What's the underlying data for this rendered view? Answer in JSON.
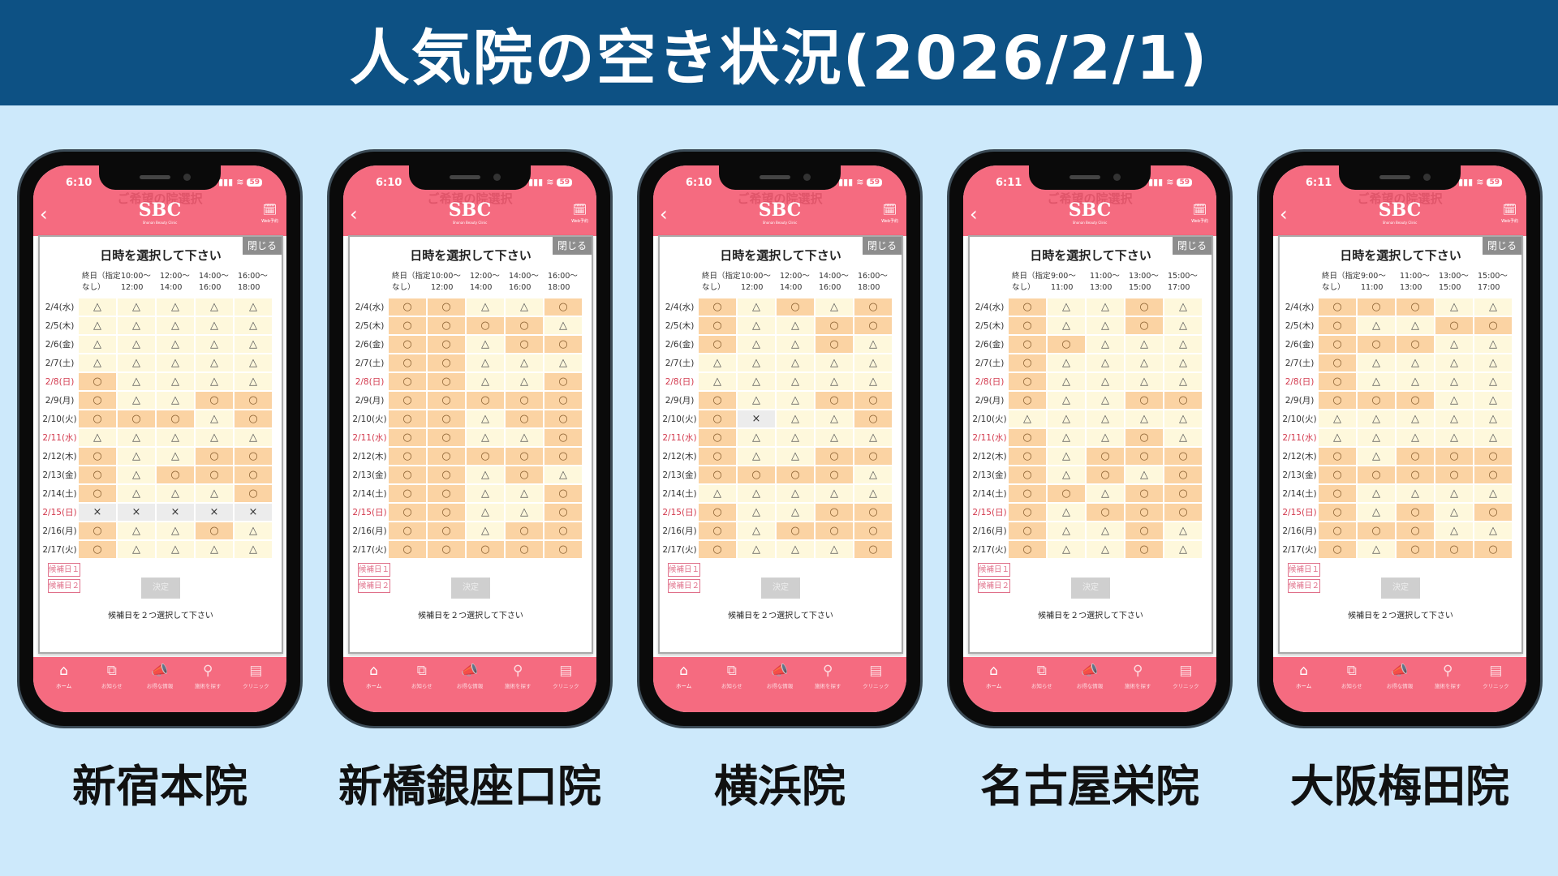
{
  "title": "人気院の空き状況(2026/2/1)",
  "app": {
    "header_faded": "ご希望の院選択",
    "logo": "SBC",
    "logo_sub": "Shonan Beauty Clinic",
    "back_icon": "chevron-left-icon",
    "web_reserve": "Web予約",
    "modal_title": "日時を選択して下さい",
    "close": "閉じる",
    "candidate1": "候補日１",
    "candidate2": "候補日２",
    "decide": "決定",
    "message": "候補日を２つ選択して下さい",
    "nav": [
      "ホーム",
      "お知らせ",
      "お得な情報",
      "施術を探す",
      "クリニック"
    ]
  },
  "colors": {
    "banner": "#0d5184",
    "background": "#cde9fb",
    "app_pink": "#f56b80",
    "available": "#fbd3a3",
    "few_left": "#fef8dc",
    "full": "#ececec",
    "holiday": "#d2394d"
  },
  "legend_symbols": {
    "available": "○",
    "few_left": "△",
    "full": "×"
  },
  "dates": [
    {
      "label": "2/4(水)",
      "holiday": false
    },
    {
      "label": "2/5(木)",
      "holiday": false
    },
    {
      "label": "2/6(金)",
      "holiday": false
    },
    {
      "label": "2/7(土)",
      "holiday": false
    },
    {
      "label": "2/8(日)",
      "holiday": true
    },
    {
      "label": "2/9(月)",
      "holiday": false
    },
    {
      "label": "2/10(火)",
      "holiday": false
    },
    {
      "label": "2/11(水)",
      "holiday": true
    },
    {
      "label": "2/12(木)",
      "holiday": false
    },
    {
      "label": "2/13(金)",
      "holiday": false
    },
    {
      "label": "2/14(土)",
      "holiday": false
    },
    {
      "label": "2/15(日)",
      "holiday": true
    },
    {
      "label": "2/16(月)",
      "holiday": false
    },
    {
      "label": "2/17(火)",
      "holiday": false
    }
  ],
  "clinics": [
    {
      "name": "新宿本院",
      "screen_label": "新宿本院",
      "time": "6:10",
      "battery": "59",
      "columns": [
        "終日（指定\nなし）",
        "10:00〜\n12:00",
        "12:00〜\n14:00",
        "14:00〜\n16:00",
        "16:00〜\n18:00"
      ],
      "rows": [
        "△△△△△",
        "△△△△△",
        "△△△△△",
        "△△△△△",
        "○△△△△",
        "○△△○○",
        "○○○△○",
        "△△△△△",
        "○△△○○",
        "○△○○○",
        "○△△△○",
        "×××××",
        "○△△○△",
        "○△△△△"
      ]
    },
    {
      "name": "新橋銀座口院",
      "screen_label": "新橋銀座口院",
      "time": "6:10",
      "battery": "59",
      "columns": [
        "終日（指定\nなし）",
        "10:00〜\n12:00",
        "12:00〜\n14:00",
        "14:00〜\n16:00",
        "16:00〜\n18:00"
      ],
      "rows": [
        "○○△△○",
        "○○○○△",
        "○○△○○",
        "○○△△△",
        "○○△△○",
        "○○○○○",
        "○○△○○",
        "○○△△○",
        "○○○○○",
        "○○△○△",
        "○○△△○",
        "○○△△○",
        "○○△○○",
        "○○○○○"
      ]
    },
    {
      "name": "横浜院",
      "screen_label": "横浜院",
      "time": "6:10",
      "battery": "59",
      "columns": [
        "終日（指定\nなし）",
        "10:00〜\n12:00",
        "12:00〜\n14:00",
        "14:00〜\n16:00",
        "16:00〜\n18:00"
      ],
      "rows": [
        "○△○△○",
        "○△△○○",
        "○△△○△",
        "△△△△△",
        "△△△△△",
        "○△△○○",
        "○×△△○",
        "○△△△△",
        "○△△○○",
        "○○○○△",
        "△△△△△",
        "○△△○○",
        "○△○○○",
        "○△△△○"
      ]
    },
    {
      "name": "名古屋栄院",
      "screen_label": "名古屋栄院",
      "time": "6:11",
      "battery": "59",
      "columns": [
        "終日（指定\nなし）",
        "9:00〜\n11:00",
        "11:00〜\n13:00",
        "13:00〜\n15:00",
        "15:00〜\n17:00"
      ],
      "rows": [
        "○△△○△",
        "○△△○△",
        "○○△△△",
        "○△△△△",
        "○△△△△",
        "○△△○○",
        "△△△△△",
        "○△△○△",
        "○△○○○",
        "○△○△○",
        "○○△○○",
        "○△○○○",
        "○△△○△",
        "○△△○△"
      ]
    },
    {
      "name": "大阪梅田院",
      "screen_label": "大阪梅田本院",
      "time": "6:11",
      "battery": "59",
      "columns": [
        "終日（指定\nなし）",
        "9:00〜\n11:00",
        "11:00〜\n13:00",
        "13:00〜\n15:00",
        "15:00〜\n17:00"
      ],
      "rows": [
        "○○○△△",
        "○△△○○",
        "○○○△△",
        "○△△△△",
        "○△△△△",
        "○○○△△",
        "△△△△△",
        "△△△△△",
        "○△○○○",
        "○○○○○",
        "○△△△△",
        "○△○△○",
        "○○○△△",
        "○△○○○"
      ]
    }
  ]
}
